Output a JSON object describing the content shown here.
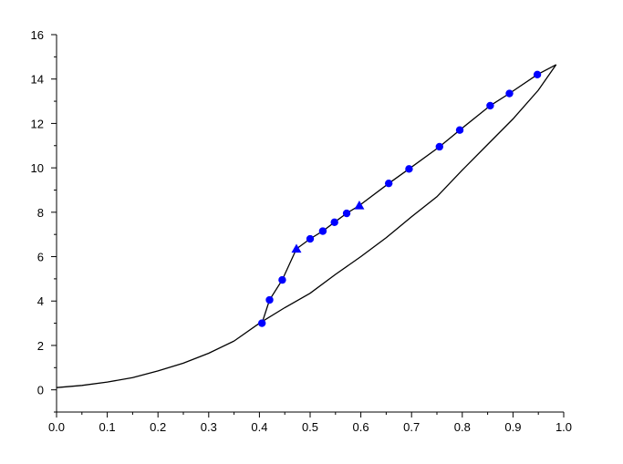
{
  "chart_data": {
    "type": "line",
    "title": "",
    "xlabel": "",
    "ylabel": "",
    "xlim": [
      0,
      1
    ],
    "ylim": [
      -1,
      16
    ],
    "grid": false,
    "x_ticks": [
      "0.0",
      "0.1",
      "0.2",
      "0.3",
      "0.4",
      "0.5",
      "0.6",
      "0.7",
      "0.8",
      "0.9",
      "1.0"
    ],
    "y_ticks": [
      "0",
      "2",
      "4",
      "6",
      "8",
      "10",
      "12",
      "14",
      "16"
    ],
    "series": [
      {
        "color": "#000000",
        "marker": "none",
        "x": [
          0.0,
          0.05,
          0.1,
          0.15,
          0.2,
          0.25,
          0.3,
          0.35,
          0.4,
          0.45,
          0.5,
          0.55,
          0.6,
          0.65,
          0.7,
          0.75,
          0.8,
          0.85,
          0.9,
          0.95,
          0.985
        ],
        "y": [
          0.1,
          0.2,
          0.35,
          0.55,
          0.85,
          1.2,
          1.65,
          2.2,
          3.0,
          3.7,
          4.35,
          5.2,
          6.0,
          6.85,
          7.8,
          8.7,
          9.9,
          11.05,
          12.2,
          13.5,
          14.65
        ]
      },
      {
        "color": "#0000ff",
        "marker": "circle",
        "x": [
          0.405,
          0.42,
          0.445,
          0.5,
          0.525,
          0.548,
          0.572,
          0.655,
          0.695,
          0.755,
          0.795,
          0.855,
          0.893,
          0.948
        ],
        "y": [
          3.0,
          4.05,
          4.95,
          6.8,
          7.15,
          7.55,
          7.95,
          9.3,
          9.95,
          10.95,
          11.7,
          12.8,
          13.35,
          14.2
        ]
      },
      {
        "color": "#0000ff",
        "marker": "triangle",
        "x": [
          0.473,
          0.597
        ],
        "y": [
          6.35,
          8.3
        ]
      },
      {
        "color": "#000000",
        "marker": "none",
        "x": [
          0.405,
          0.42,
          0.445,
          0.473,
          0.5,
          0.525,
          0.548,
          0.572,
          0.597,
          0.655,
          0.695,
          0.755,
          0.795,
          0.855,
          0.893,
          0.948,
          0.985
        ],
        "y": [
          3.0,
          4.05,
          4.95,
          6.35,
          6.8,
          7.15,
          7.55,
          7.95,
          8.3,
          9.3,
          9.95,
          10.95,
          11.7,
          12.8,
          13.35,
          14.2,
          14.65
        ]
      }
    ]
  }
}
